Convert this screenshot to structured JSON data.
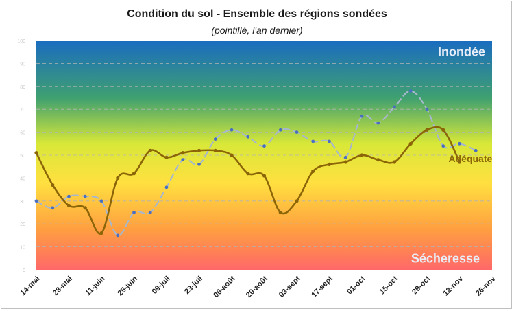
{
  "chart_data": {
    "type": "line",
    "title": "Condition du sol - Ensemble des régions sondées",
    "subtitle": "(pointillé, l'an dernier)",
    "categories": [
      "14-mai",
      "28-mai",
      "11-juin",
      "25-juin",
      "09-juil",
      "23-juil",
      "06-août",
      "20-août",
      "03-sept",
      "17-sept",
      "01-oct",
      "15-oct",
      "29-oct",
      "12-nov",
      "26-nov"
    ],
    "yticks": [
      "0",
      "10",
      "20",
      "30",
      "40",
      "50",
      "60",
      "70",
      "80",
      "90",
      "100"
    ],
    "ylim": [
      0,
      100
    ],
    "grid": true,
    "zones": [
      {
        "label": "Inondée",
        "value": 95
      },
      {
        "label": "Sécheresse",
        "value": 5
      }
    ],
    "annotation": {
      "label": "Adéquate",
      "value": 48.5
    },
    "series": [
      {
        "style": "solid",
        "color": "#8b6508",
        "x": [
          0,
          0.5,
          1,
          1.5,
          2,
          2.5,
          3,
          3.5,
          4,
          4.5,
          5,
          5.5,
          6,
          6.5,
          7,
          7.5,
          8,
          8.5,
          9,
          9.5,
          10,
          10.5,
          11,
          11.5,
          12,
          12.5,
          13
        ],
        "values": [
          51,
          37,
          28,
          27,
          16,
          40,
          42,
          52,
          49,
          51,
          52,
          52,
          50,
          42,
          41,
          25,
          30,
          43,
          46,
          47,
          50,
          48,
          47,
          55,
          61,
          61,
          47
        ]
      },
      {
        "style": "dashed",
        "color": "#a8b8cc",
        "x": [
          0,
          0.5,
          1,
          1.5,
          2,
          2.5,
          3,
          3.5,
          4,
          4.5,
          5,
          5.5,
          6,
          6.5,
          7,
          7.5,
          8,
          8.5,
          9,
          9.5,
          10,
          10.5,
          11,
          11.5,
          12,
          12.5,
          13,
          13.5
        ],
        "values": [
          30,
          27,
          32,
          32,
          30,
          15,
          25,
          25,
          36,
          48,
          46,
          57,
          61,
          58,
          54,
          61,
          60,
          56,
          56,
          49,
          67,
          64,
          71,
          78,
          70,
          54,
          55,
          52
        ]
      }
    ]
  },
  "colors": {
    "background_top": "#1e73be",
    "background_bottom": "#ff7070",
    "grid": "#b4b4b4"
  }
}
